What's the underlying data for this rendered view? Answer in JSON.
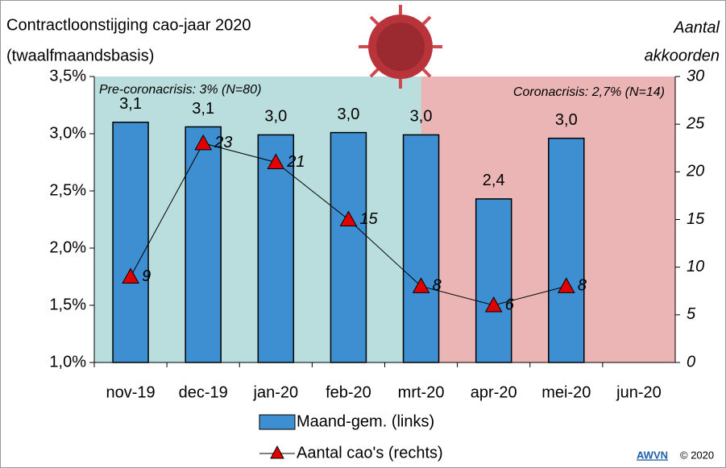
{
  "chart_data": {
    "type": "bar",
    "title": "Contractloonstijging cao-jaar 2020",
    "subtitle": "(twaalfmaandsbasis)",
    "y2label": [
      "Aantal",
      "akkoorden"
    ],
    "categories": [
      "nov-19",
      "dec-19",
      "jan-20",
      "feb-20",
      "mrt-20",
      "apr-20",
      "mei-20",
      "jun-20"
    ],
    "series": [
      {
        "name": "Maand-gem. (links)",
        "type": "bar",
        "color": "#3d8fd1",
        "values": [
          3.1,
          3.06,
          2.99,
          3.01,
          2.99,
          2.43,
          2.96,
          null
        ],
        "value_labels": [
          "3,1",
          "3,1",
          "3,0",
          "3,0",
          "3,0",
          "2,4",
          "3,0",
          null
        ]
      },
      {
        "name": "Aantal cao's (rechts)",
        "type": "line",
        "axis": "y2",
        "color": "#e00000",
        "values": [
          9,
          23,
          21,
          15,
          8,
          6,
          8,
          null
        ]
      }
    ],
    "ylim": [
      1,
      3.5
    ],
    "yticks": [
      {
        "value": 1,
        "label": "1,0%"
      },
      {
        "value": 1.5,
        "label": "1,5%"
      },
      {
        "value": 2,
        "label": "2,0%"
      },
      {
        "value": 2.5,
        "label": "2,5%"
      },
      {
        "value": 3,
        "label": "3,0%"
      },
      {
        "value": 3.5,
        "label": "3,5%"
      }
    ],
    "y2lim": [
      0,
      30
    ],
    "y2ticks": [
      0,
      5,
      10,
      15,
      20,
      25,
      30
    ],
    "annotations": [
      "Pre-coronacrisis: 3% (N=80)",
      "Coronacrisis: 2,7% (N=14)"
    ],
    "source": "AWVN",
    "copyright": "© 2020"
  }
}
